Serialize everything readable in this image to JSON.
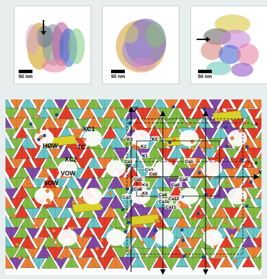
{
  "panels": [
    {
      "id": "panel-1",
      "scale_label": "50 nm",
      "has_arrow": true
    },
    {
      "id": "panel-2",
      "scale_label": "50 nm",
      "has_arrow": false
    },
    {
      "id": "panel-3",
      "scale_label": "50 nm",
      "has_arrow": true
    }
  ],
  "crystal": {
    "labels": {
      "xc1": "XC1",
      "tc": "TC",
      "h8w": "HØW",
      "xc2": "XC2",
      "vow": "VOW",
      "w6o": "6OW",
      "axis_y": "y",
      "axis_x": "x",
      "axis_a1": "- a",
      "axis_a2": "- a"
    },
    "site_labels": [
      "K3",
      "K2",
      "K5",
      "K1",
      "Ca1",
      "Ca1",
      "K4",
      "K6",
      "Ca5",
      "Ca6",
      "Ca7",
      "Ca3",
      "Ca4",
      "Ca2",
      "Ca9",
      "Ca8",
      "Ca10",
      "Ca11",
      "Ca12"
    ],
    "colors": {
      "green": "#7bb83a",
      "orange": "#e87a2a",
      "red": "#e2321e",
      "cyan": "#5fc4c4",
      "purple": "#7b3fa0",
      "yellow": "#d9d02a",
      "blue": "#1a4fa0"
    }
  }
}
